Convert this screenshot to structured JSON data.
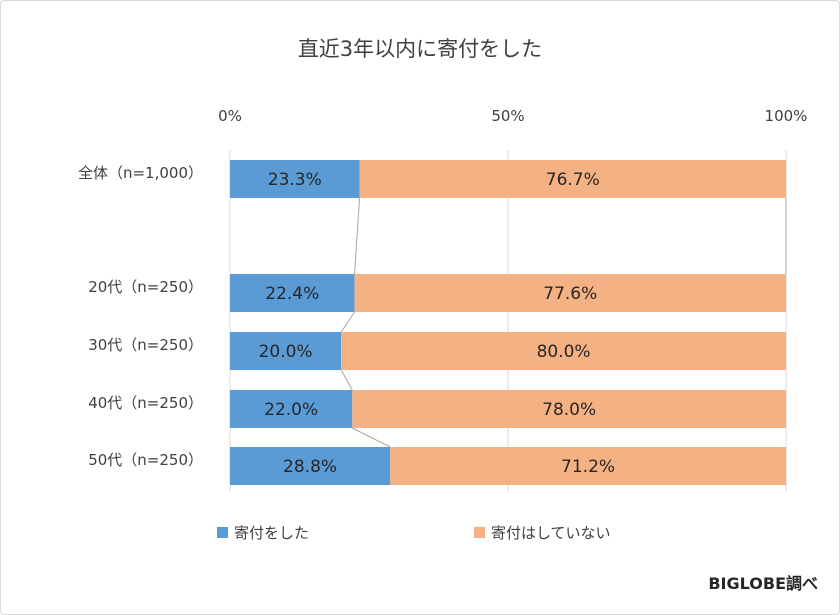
{
  "chart_data": {
    "type": "bar",
    "orientation": "horizontal",
    "stacked": "100%",
    "title": "直近3年以内に寄付をした",
    "x_ticks": [
      "0%",
      "50%",
      "100%"
    ],
    "xlim": [
      0,
      100
    ],
    "categories": [
      "全体（n=1,000）",
      "20代（n=250）",
      "30代（n=250）",
      "40代（n=250）",
      "50代（n=250）"
    ],
    "series": [
      {
        "name": "寄付をした",
        "color": "#5b9bd5",
        "values": [
          23.3,
          22.4,
          20.0,
          22.0,
          28.8
        ],
        "labels": [
          "23.3%",
          "22.4%",
          "20.0%",
          "22.0%",
          "28.8%"
        ]
      },
      {
        "name": "寄付はしていない",
        "color": "#f4b183",
        "values": [
          76.7,
          77.6,
          80.0,
          78.0,
          71.2
        ],
        "labels": [
          "76.7%",
          "77.6%",
          "80.0%",
          "78.0%",
          "71.2%"
        ]
      }
    ],
    "grid": true,
    "series_lines": true,
    "legend_position": "bottom"
  },
  "source": "BIGLOBE調べ"
}
